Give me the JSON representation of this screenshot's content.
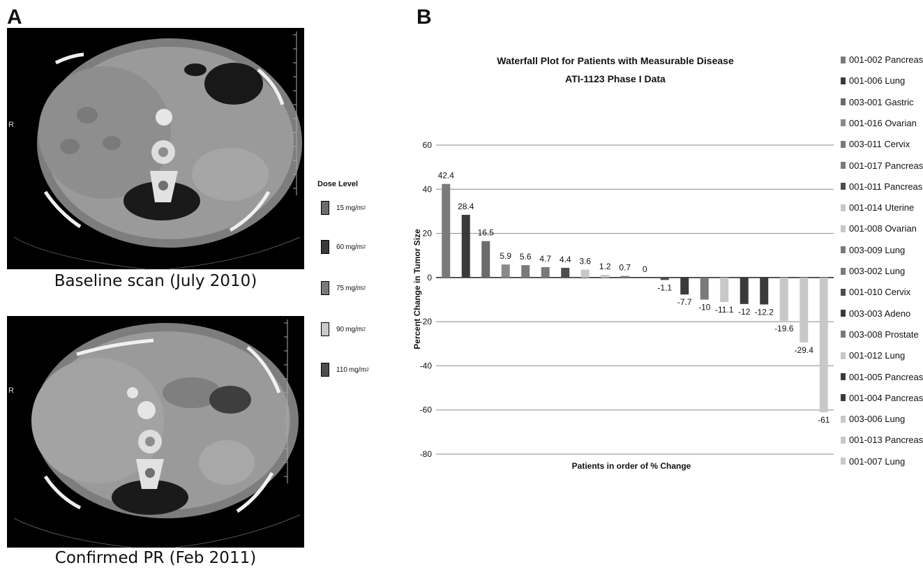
{
  "panels": {
    "a": {
      "letter": "A",
      "top_caption": "Baseline scan (July 2010)",
      "bottom_caption": "Confirmed PR (Feb 2011)",
      "orientation_mark": "R"
    },
    "b": {
      "letter": "B"
    }
  },
  "dose_legend": {
    "title": "Dose Level",
    "items": [
      {
        "value": "15",
        "unit": "mg/m",
        "exp": "2",
        "color": "#6b6b6b"
      },
      {
        "value": "60",
        "unit": "mg/m",
        "exp": "2",
        "color": "#3a3a3a"
      },
      {
        "value": "75",
        "unit": "mg/m",
        "exp": "2",
        "color": "#7a7a7a"
      },
      {
        "value": "90",
        "unit": "mg/m",
        "exp": "2",
        "color": "#c8c8c8"
      },
      {
        "value": "110",
        "unit": "mg/m",
        "exp": "2",
        "color": "#4d4d4d"
      }
    ]
  },
  "chart_data": {
    "type": "bar",
    "title": "Waterfall Plot for Patients with Measurable Disease",
    "subtitle": "ATI-1123 Phase I Data",
    "xlabel": "Patients in order of % Change",
    "ylabel": "Percent Change in Tumor Size",
    "ylim": [
      -80,
      60
    ],
    "yticks": [
      60,
      40,
      20,
      0,
      -20,
      -40,
      -60,
      -80
    ],
    "grid": true,
    "legend_position": "right",
    "categories": [
      "001-002 Pancreas",
      "001-006 Lung",
      "003-001 Gastric",
      "001-016 Ovarian",
      "003-011 Cervix",
      "001-017 Pancreas",
      "001-011 Pancreas",
      "001-014 Uterine",
      "001-008 Ovarian",
      "003-009 Lung",
      "003-002 Lung",
      "001-010 Cervix",
      "003-003 Adeno",
      "003-008 Prostate",
      "001-012 Lung",
      "001-005 Pancreas",
      "001-004 Pancreas",
      "003-006 Lung",
      "001-013 Pancreas",
      "001-007 Lung"
    ],
    "values": [
      42.4,
      28.4,
      16.5,
      5.9,
      5.6,
      4.7,
      4.4,
      3.6,
      1.2,
      0.7,
      0,
      -1.1,
      -7.7,
      -10,
      -11.1,
      -12,
      -12.2,
      -19.6,
      -29.4,
      -61
    ],
    "value_labels": [
      "42.4",
      "28.4",
      "16.5",
      "5.9",
      "5.6",
      "4.7",
      "4.4",
      "3.6",
      "1.2",
      "0.7",
      "0",
      "-1.1",
      "-7.7",
      "-10",
      "-11.1",
      "-12",
      "-12.2",
      "-19.6",
      "-29.4",
      "-61"
    ],
    "colors": [
      "#7a7a7a",
      "#3a3a3a",
      "#6b6b6b",
      "#8a8a8a",
      "#7a7a7a",
      "#7a7a7a",
      "#4d4d4d",
      "#c8c8c8",
      "#c8c8c8",
      "#7a7a7a",
      "#7a7a7a",
      "#4d4d4d",
      "#3a3a3a",
      "#7a7a7a",
      "#c8c8c8",
      "#3a3a3a",
      "#3a3a3a",
      "#c8c8c8",
      "#c8c8c8",
      "#c8c8c8"
    ]
  }
}
